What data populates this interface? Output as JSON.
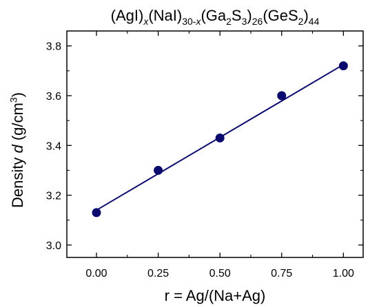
{
  "chart_data": {
    "type": "scatter",
    "title": {
      "parts": [
        {
          "text": "(AgI)",
          "style": "normal"
        },
        {
          "text": "x",
          "style": "sub-italic"
        },
        {
          "text": "(NaI)",
          "style": "normal"
        },
        {
          "text": "30-",
          "style": "sub"
        },
        {
          "text": "x",
          "style": "sub-italic"
        },
        {
          "text": "(Ga",
          "style": "normal"
        },
        {
          "text": "2",
          "style": "sub"
        },
        {
          "text": "S",
          "style": "normal"
        },
        {
          "text": "3",
          "style": "sub"
        },
        {
          "text": ")",
          "style": "normal"
        },
        {
          "text": "26",
          "style": "sub"
        },
        {
          "text": "(GeS",
          "style": "normal"
        },
        {
          "text": "2",
          "style": "sub"
        },
        {
          "text": ")",
          "style": "normal"
        },
        {
          "text": "44",
          "style": "sub"
        }
      ]
    },
    "xlabel": "r = Ag/(Na+Ag)",
    "ylabel": {
      "parts": [
        {
          "text": "Density ",
          "style": "normal"
        },
        {
          "text": "d",
          "style": "italic"
        },
        {
          "text": " (g/cm",
          "style": "normal"
        },
        {
          "text": "3",
          "style": "sup"
        },
        {
          "text": ")",
          "style": "normal"
        }
      ]
    },
    "xlim": [
      -0.12,
      1.08
    ],
    "ylim": [
      2.95,
      3.86
    ],
    "xticks": [
      0.0,
      0.25,
      0.5,
      0.75,
      1.0
    ],
    "xtick_labels": [
      "0.00",
      "0.25",
      "0.50",
      "0.75",
      "1.00"
    ],
    "yticks": [
      3.0,
      3.2,
      3.4,
      3.6,
      3.8
    ],
    "ytick_labels": [
      "3.0",
      "3.2",
      "3.4",
      "3.6",
      "3.8"
    ],
    "grid": false,
    "series": [
      {
        "x": [
          0.0,
          0.25,
          0.5,
          0.75,
          1.0
        ],
        "y": [
          3.13,
          3.3,
          3.43,
          3.6,
          3.72
        ],
        "color": "#0a0a6e",
        "marker": "circle"
      }
    ],
    "fit_line": {
      "x": [
        0.0,
        1.0
      ],
      "y": [
        3.14,
        3.725
      ],
      "color": "#0a0a6e"
    }
  }
}
